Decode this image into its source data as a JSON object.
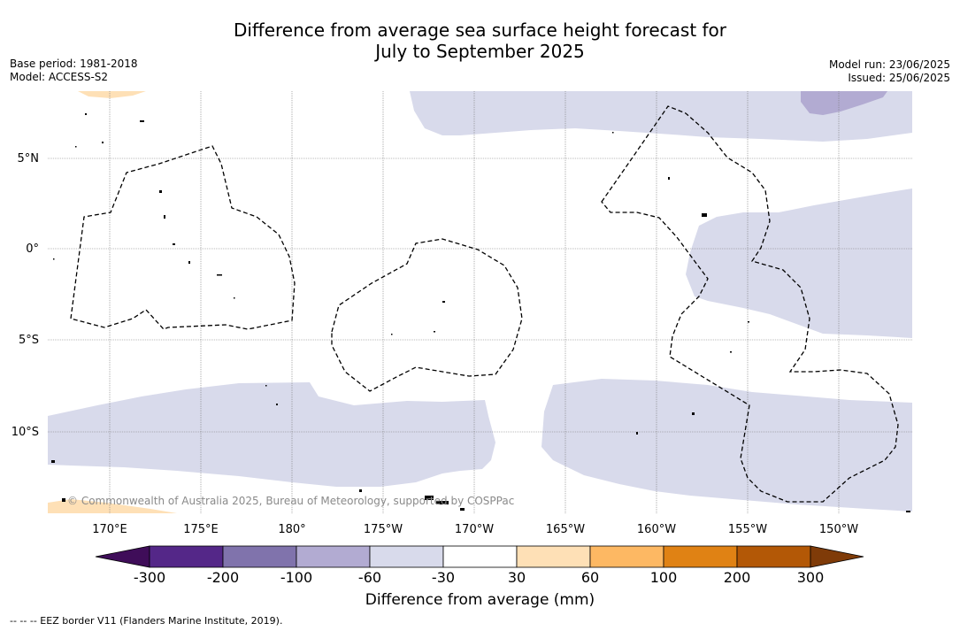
{
  "title_line1": "Difference from average sea surface height forecast for",
  "title_line2": "July to September 2025",
  "base_period": "Base period: 1981-2018",
  "model": "Model: ACCESS-S2",
  "model_run": "Model run: 23/06/2025",
  "issued": "Issued: 25/06/2025",
  "copyright": "© Commonwealth of Australia 2025, Bureau of Meteorology, supported by COSPPac",
  "footnote": "--  --  -- EEZ border V11 (Flanders Marine Institute, 2019).",
  "map": {
    "lon_labels": [
      "170°E",
      "175°E",
      "180°",
      "175°W",
      "170°W",
      "165°W",
      "160°W",
      "155°W",
      "150°W"
    ],
    "lat_labels": [
      "5°N",
      "0°",
      "5°S",
      "10°S"
    ]
  },
  "colorbar": {
    "label": "Difference from average (mm)",
    "ticks": [
      "-300",
      "-200",
      "-100",
      "-60",
      "-30",
      "30",
      "60",
      "100",
      "200",
      "300"
    ],
    "under_color": "#3f0d59",
    "over_color": "#7f3b08",
    "colors": [
      "#542788",
      "#8073ac",
      "#b2abd2",
      "#d8daeb",
      "#ffffff",
      "#fee0b6",
      "#fdb863",
      "#e08214",
      "#b35806"
    ]
  }
}
